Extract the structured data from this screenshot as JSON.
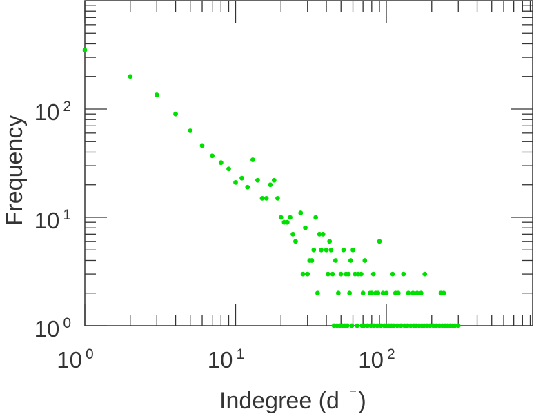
{
  "chart_data": {
    "type": "scatter",
    "xlabel_main": "Indegree (d",
    "xlabel_sup": "⁻",
    "xlabel_end": ")",
    "ylabel": "Frequency",
    "x_scale": "log",
    "y_scale": "log",
    "xlim": [
      1,
      1000
    ],
    "ylim": [
      1,
      1000
    ],
    "x_ticks": [
      {
        "base": "10",
        "exp": "0",
        "value": 1
      },
      {
        "base": "10",
        "exp": "1",
        "value": 10
      },
      {
        "base": "10",
        "exp": "2",
        "value": 100
      }
    ],
    "y_ticks": [
      {
        "base": "10",
        "exp": "0",
        "value": 1
      },
      {
        "base": "10",
        "exp": "1",
        "value": 10
      },
      {
        "base": "10",
        "exp": "2",
        "value": 100
      }
    ],
    "grid": false,
    "marker_color": "#00e000",
    "points": [
      [
        1,
        350
      ],
      [
        2,
        200
      ],
      [
        3,
        135
      ],
      [
        4,
        90
      ],
      [
        5,
        63
      ],
      [
        6,
        46
      ],
      [
        7,
        37
      ],
      [
        8,
        32
      ],
      [
        9,
        28
      ],
      [
        10,
        21
      ],
      [
        11,
        23
      ],
      [
        12,
        19
      ],
      [
        13,
        34
      ],
      [
        14,
        22
      ],
      [
        15,
        15
      ],
      [
        16,
        15
      ],
      [
        17,
        20
      ],
      [
        18,
        22
      ],
      [
        19,
        15
      ],
      [
        20,
        10
      ],
      [
        21,
        9
      ],
      [
        22,
        9
      ],
      [
        23,
        10
      ],
      [
        24,
        7
      ],
      [
        25,
        6
      ],
      [
        27,
        11
      ],
      [
        28,
        3
      ],
      [
        29,
        8
      ],
      [
        30,
        3
      ],
      [
        31,
        4
      ],
      [
        32,
        4
      ],
      [
        33,
        5
      ],
      [
        34,
        10
      ],
      [
        35,
        2
      ],
      [
        36,
        7
      ],
      [
        37,
        5
      ],
      [
        38,
        7
      ],
      [
        40,
        5
      ],
      [
        41,
        3
      ],
      [
        42,
        6
      ],
      [
        43,
        5
      ],
      [
        44,
        3
      ],
      [
        46,
        4
      ],
      [
        48,
        2
      ],
      [
        50,
        3
      ],
      [
        52,
        5
      ],
      [
        54,
        3
      ],
      [
        56,
        3
      ],
      [
        57,
        2
      ],
      [
        58,
        4
      ],
      [
        60,
        5
      ],
      [
        62,
        3
      ],
      [
        65,
        3
      ],
      [
        68,
        3
      ],
      [
        70,
        2
      ],
      [
        72,
        4
      ],
      [
        78,
        2
      ],
      [
        80,
        2
      ],
      [
        82,
        3
      ],
      [
        85,
        2
      ],
      [
        88,
        2
      ],
      [
        90,
        6
      ],
      [
        95,
        2
      ],
      [
        100,
        2
      ],
      [
        110,
        3
      ],
      [
        115,
        2
      ],
      [
        120,
        2
      ],
      [
        130,
        3
      ],
      [
        140,
        2
      ],
      [
        150,
        2
      ],
      [
        160,
        2
      ],
      [
        170,
        2
      ],
      [
        180,
        3
      ],
      [
        230,
        2
      ],
      [
        240,
        2
      ],
      [
        45,
        1
      ],
      [
        47,
        1
      ],
      [
        49,
        1
      ],
      [
        51,
        1
      ],
      [
        53,
        1
      ],
      [
        55,
        1
      ],
      [
        59,
        1
      ],
      [
        64,
        1
      ],
      [
        69,
        1
      ],
      [
        71,
        1
      ],
      [
        75,
        1
      ],
      [
        79,
        1
      ],
      [
        83,
        1
      ],
      [
        87,
        1
      ],
      [
        92,
        1
      ],
      [
        97,
        1
      ],
      [
        100,
        1
      ],
      [
        104,
        1
      ],
      [
        108,
        1
      ],
      [
        112,
        1
      ],
      [
        118,
        1
      ],
      [
        125,
        1
      ],
      [
        132,
        1
      ],
      [
        138,
        1
      ],
      [
        145,
        1
      ],
      [
        152,
        1
      ],
      [
        158,
        1
      ],
      [
        165,
        1
      ],
      [
        172,
        1
      ],
      [
        178,
        1
      ],
      [
        186,
        1
      ],
      [
        195,
        1
      ],
      [
        205,
        1
      ],
      [
        215,
        1
      ],
      [
        225,
        1
      ],
      [
        235,
        1
      ],
      [
        245,
        1
      ],
      [
        255,
        1
      ],
      [
        265,
        1
      ],
      [
        275,
        1
      ],
      [
        285,
        1
      ],
      [
        300,
        1
      ]
    ]
  }
}
